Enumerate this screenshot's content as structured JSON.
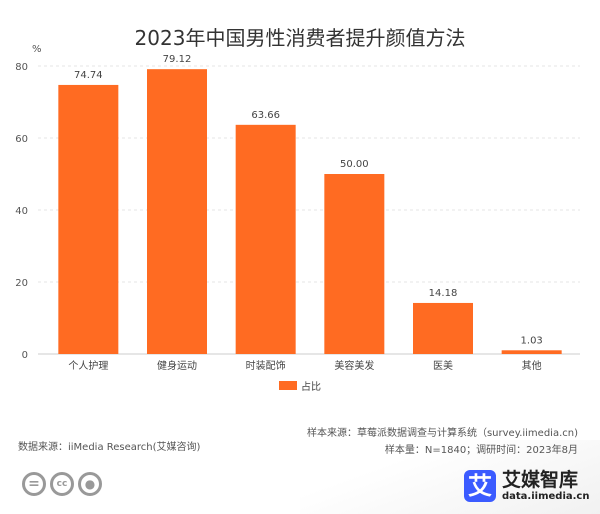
{
  "chart_data": {
    "type": "bar",
    "title": "2023年中国男性消费者提升颜值方法",
    "ylabel": "%",
    "xlabel": "",
    "ylim": [
      0,
      80
    ],
    "yticks": [
      0,
      20,
      40,
      60,
      80
    ],
    "categories": [
      "个人护理",
      "健身运动",
      "时装配饰",
      "美容美发",
      "医美",
      "其他"
    ],
    "series": [
      {
        "name": "占比",
        "values": [
          74.74,
          79.12,
          63.66,
          50.0,
          14.18,
          1.03
        ],
        "labels": [
          "74.74",
          "79.12",
          "63.66",
          "50.00",
          "14.18",
          "1.03"
        ],
        "color": "#FF6B22"
      }
    ],
    "grid": true,
    "legend": "bottom-center"
  },
  "footer": {
    "sample_source": "样本来源：草莓派数据调查与计算系统（survey.iimedia.cn)",
    "sample_info": "样本量：N=1840；调研时间：2023年8月",
    "data_source": "数据来源：iiMedia Research(艾媒咨询)"
  },
  "brand": {
    "name": "艾媒智库",
    "url": "data.iimedia.cn",
    "logo_char": "艾",
    "color": "#3B5BFF"
  }
}
